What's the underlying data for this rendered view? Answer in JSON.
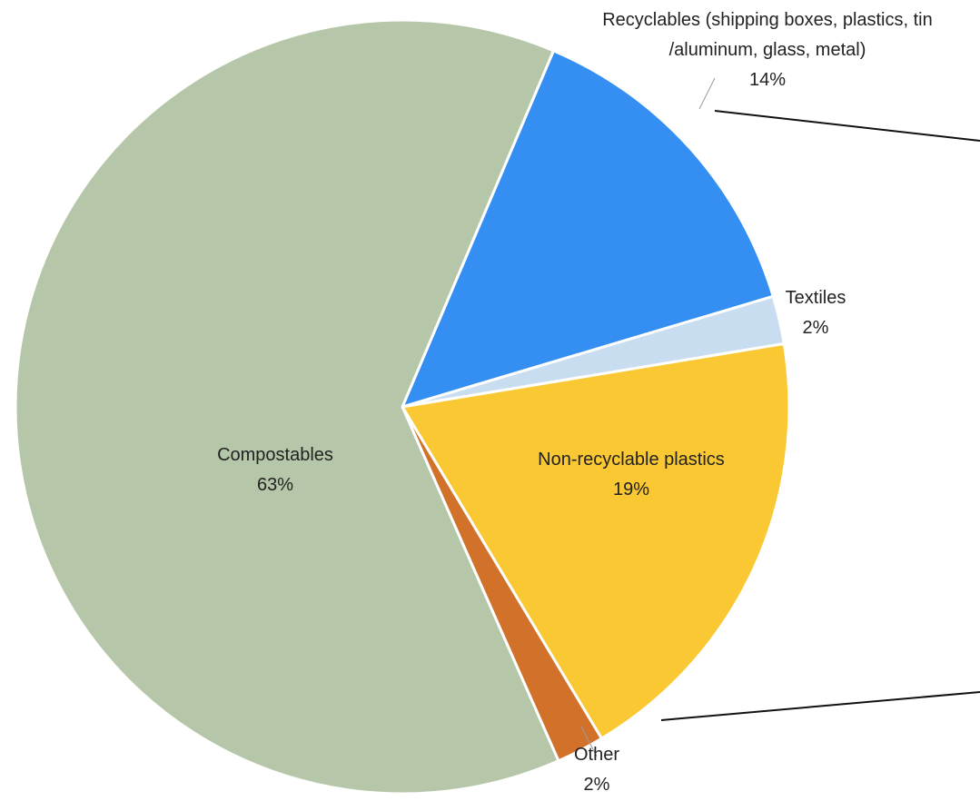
{
  "chart_data": {
    "type": "pie",
    "categories": [
      "Recyclables (shipping boxes, plastics, tin /aluminum, glass, metal)",
      "Textiles",
      "Non-recyclable plastics",
      "Other",
      "Compostables"
    ],
    "values": [
      14,
      2,
      19,
      2,
      63
    ],
    "value_labels": [
      "14%",
      "2%",
      "19%",
      "2%",
      "63%"
    ],
    "colors": [
      "#358ff2",
      "#c9ddf0",
      "#f9c832",
      "#d2722a",
      "#b5c7a8"
    ]
  }
}
